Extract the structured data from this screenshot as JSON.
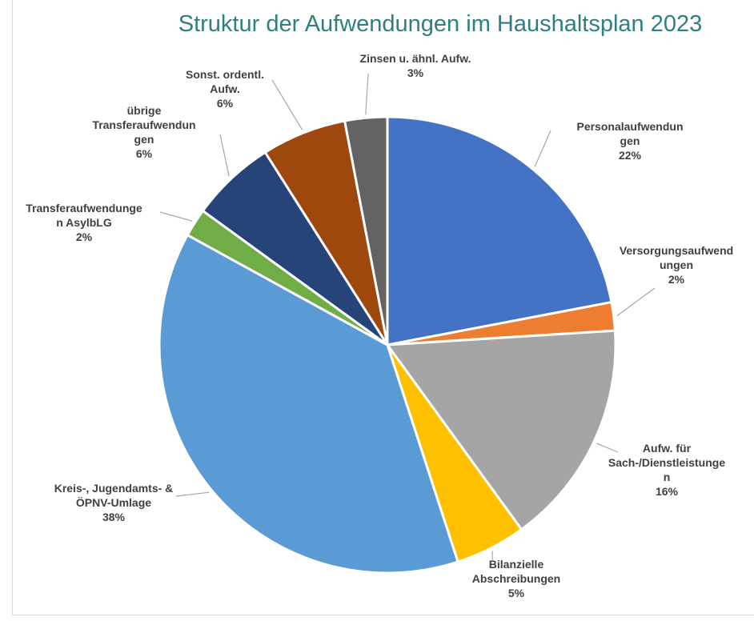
{
  "chart_data": {
    "type": "pie",
    "title": "Struktur der Aufwendungen im Haushaltsplan 2023",
    "categories": [
      "Personalaufwendungen",
      "Versorgungsaufwendungen",
      "Aufw. für Sach-/Dienstleistungen",
      "Bilanzielle Abschreibungen",
      "Kreis-, Jugendamts- & ÖPNV-Umlage",
      "Transferaufwendungen AsylbLG",
      "übrige Transferaufwendungen",
      "Sonst. ordentl. Aufw.",
      "Zinsen u. ähnl. Aufw."
    ],
    "values": [
      22,
      2,
      16,
      5,
      38,
      2,
      6,
      6,
      3
    ],
    "value_labels": [
      "22%",
      "2%",
      "16%",
      "5%",
      "38%",
      "2%",
      "6%",
      "6%",
      "3%"
    ],
    "colors": [
      "#4472c4",
      "#ed7d31",
      "#a5a5a5",
      "#ffc000",
      "#5b9bd5",
      "#70ad47",
      "#264478",
      "#9e480e",
      "#636363"
    ]
  }
}
